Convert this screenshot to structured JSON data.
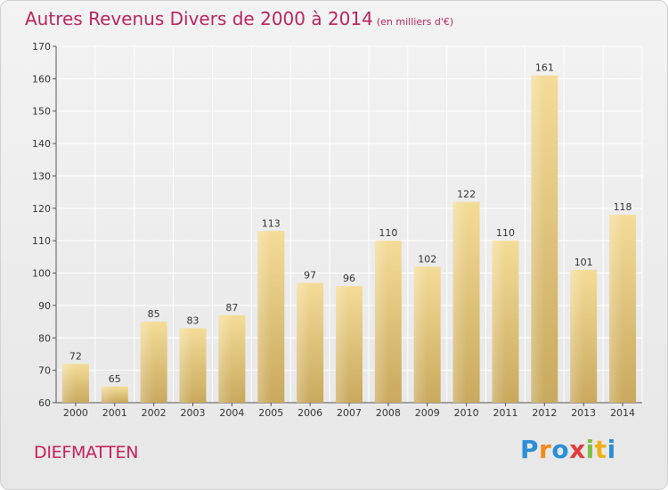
{
  "chart_data": {
    "type": "bar",
    "title": "Autres Revenus Divers de 2000 à 2014",
    "unit": "(en milliers d'€)",
    "categories": [
      "2000",
      "2001",
      "2002",
      "2003",
      "2004",
      "2005",
      "2006",
      "2007",
      "2008",
      "2009",
      "2010",
      "2011",
      "2012",
      "2013",
      "2014"
    ],
    "values": [
      72,
      65,
      85,
      83,
      87,
      113,
      97,
      96,
      110,
      102,
      122,
      110,
      161,
      101,
      118
    ],
    "ylim": [
      60,
      170
    ],
    "yticks": [
      60,
      70,
      80,
      90,
      100,
      110,
      120,
      130,
      140,
      150,
      160,
      170
    ],
    "grid": true,
    "bar_color": "#e3c77b"
  },
  "location": "DIEFMATTEN",
  "logo": {
    "letters": [
      "P",
      "r",
      "o",
      "x",
      "i",
      "t",
      "i"
    ],
    "colors": [
      "#2a8fd6",
      "#f28a1c",
      "#2a8fd6",
      "#e23b3b",
      "#7cc043",
      "#f0b01a",
      "#2a8fd6"
    ]
  }
}
